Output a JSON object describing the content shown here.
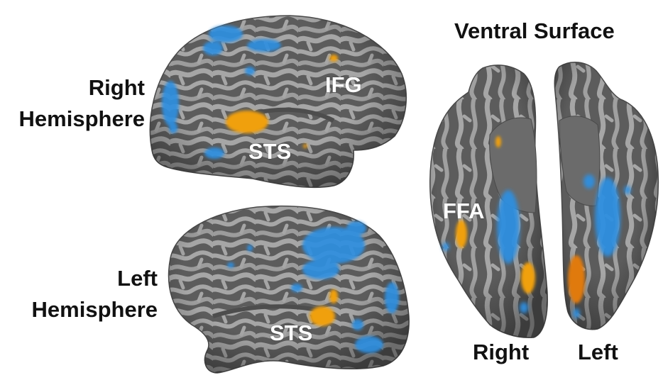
{
  "labels": {
    "right_hemisphere_line1": "Right",
    "right_hemisphere_line2": "Hemisphere",
    "left_hemisphere_line1": "Left",
    "left_hemisphere_line2": "Hemisphere",
    "ventral_surface": "Ventral Surface",
    "ventral_right": "Right",
    "ventral_left": "Left"
  },
  "regions": {
    "ifg": "IFG",
    "sts_right": "STS",
    "sts_left": "STS",
    "ffa": "FFA"
  },
  "colors": {
    "sulcus": "#5a5a5a",
    "gyrus": "#a4a4a4",
    "activation_warm": "#f0a010",
    "activation_cool": "#2f8fe0"
  }
}
